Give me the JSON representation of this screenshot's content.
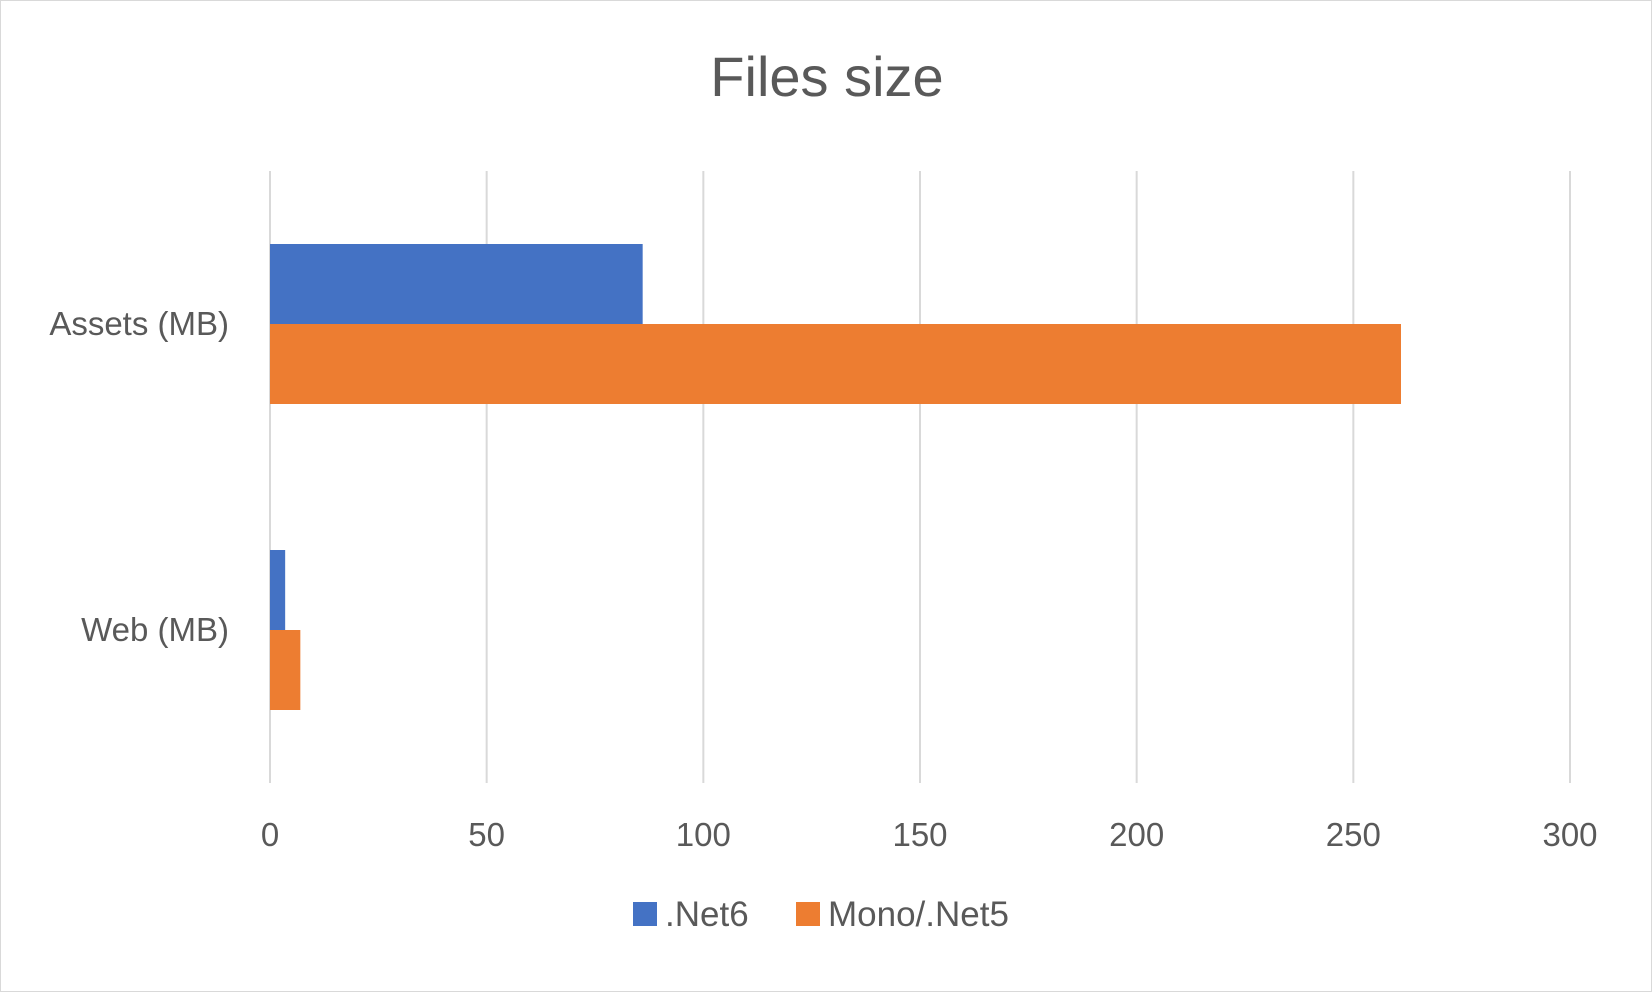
{
  "chart_data": {
    "type": "bar",
    "orientation": "horizontal",
    "title": "Files size",
    "categories": [
      "Assets (MB)",
      "Web (MB)"
    ],
    "series": [
      {
        "name": ".Net6",
        "color": "#4472C4",
        "values": [
          86,
          3.5
        ]
      },
      {
        "name": "Mono/.Net5",
        "color": "#ED7D31",
        "values": [
          261,
          7
        ]
      }
    ],
    "xlim": [
      0,
      300
    ],
    "xticks": [
      0,
      50,
      100,
      150,
      200,
      250,
      300
    ],
    "grid": true,
    "legend_position": "bottom"
  },
  "colors": {
    "gridline": "#d9d9d9",
    "text": "#595959"
  }
}
